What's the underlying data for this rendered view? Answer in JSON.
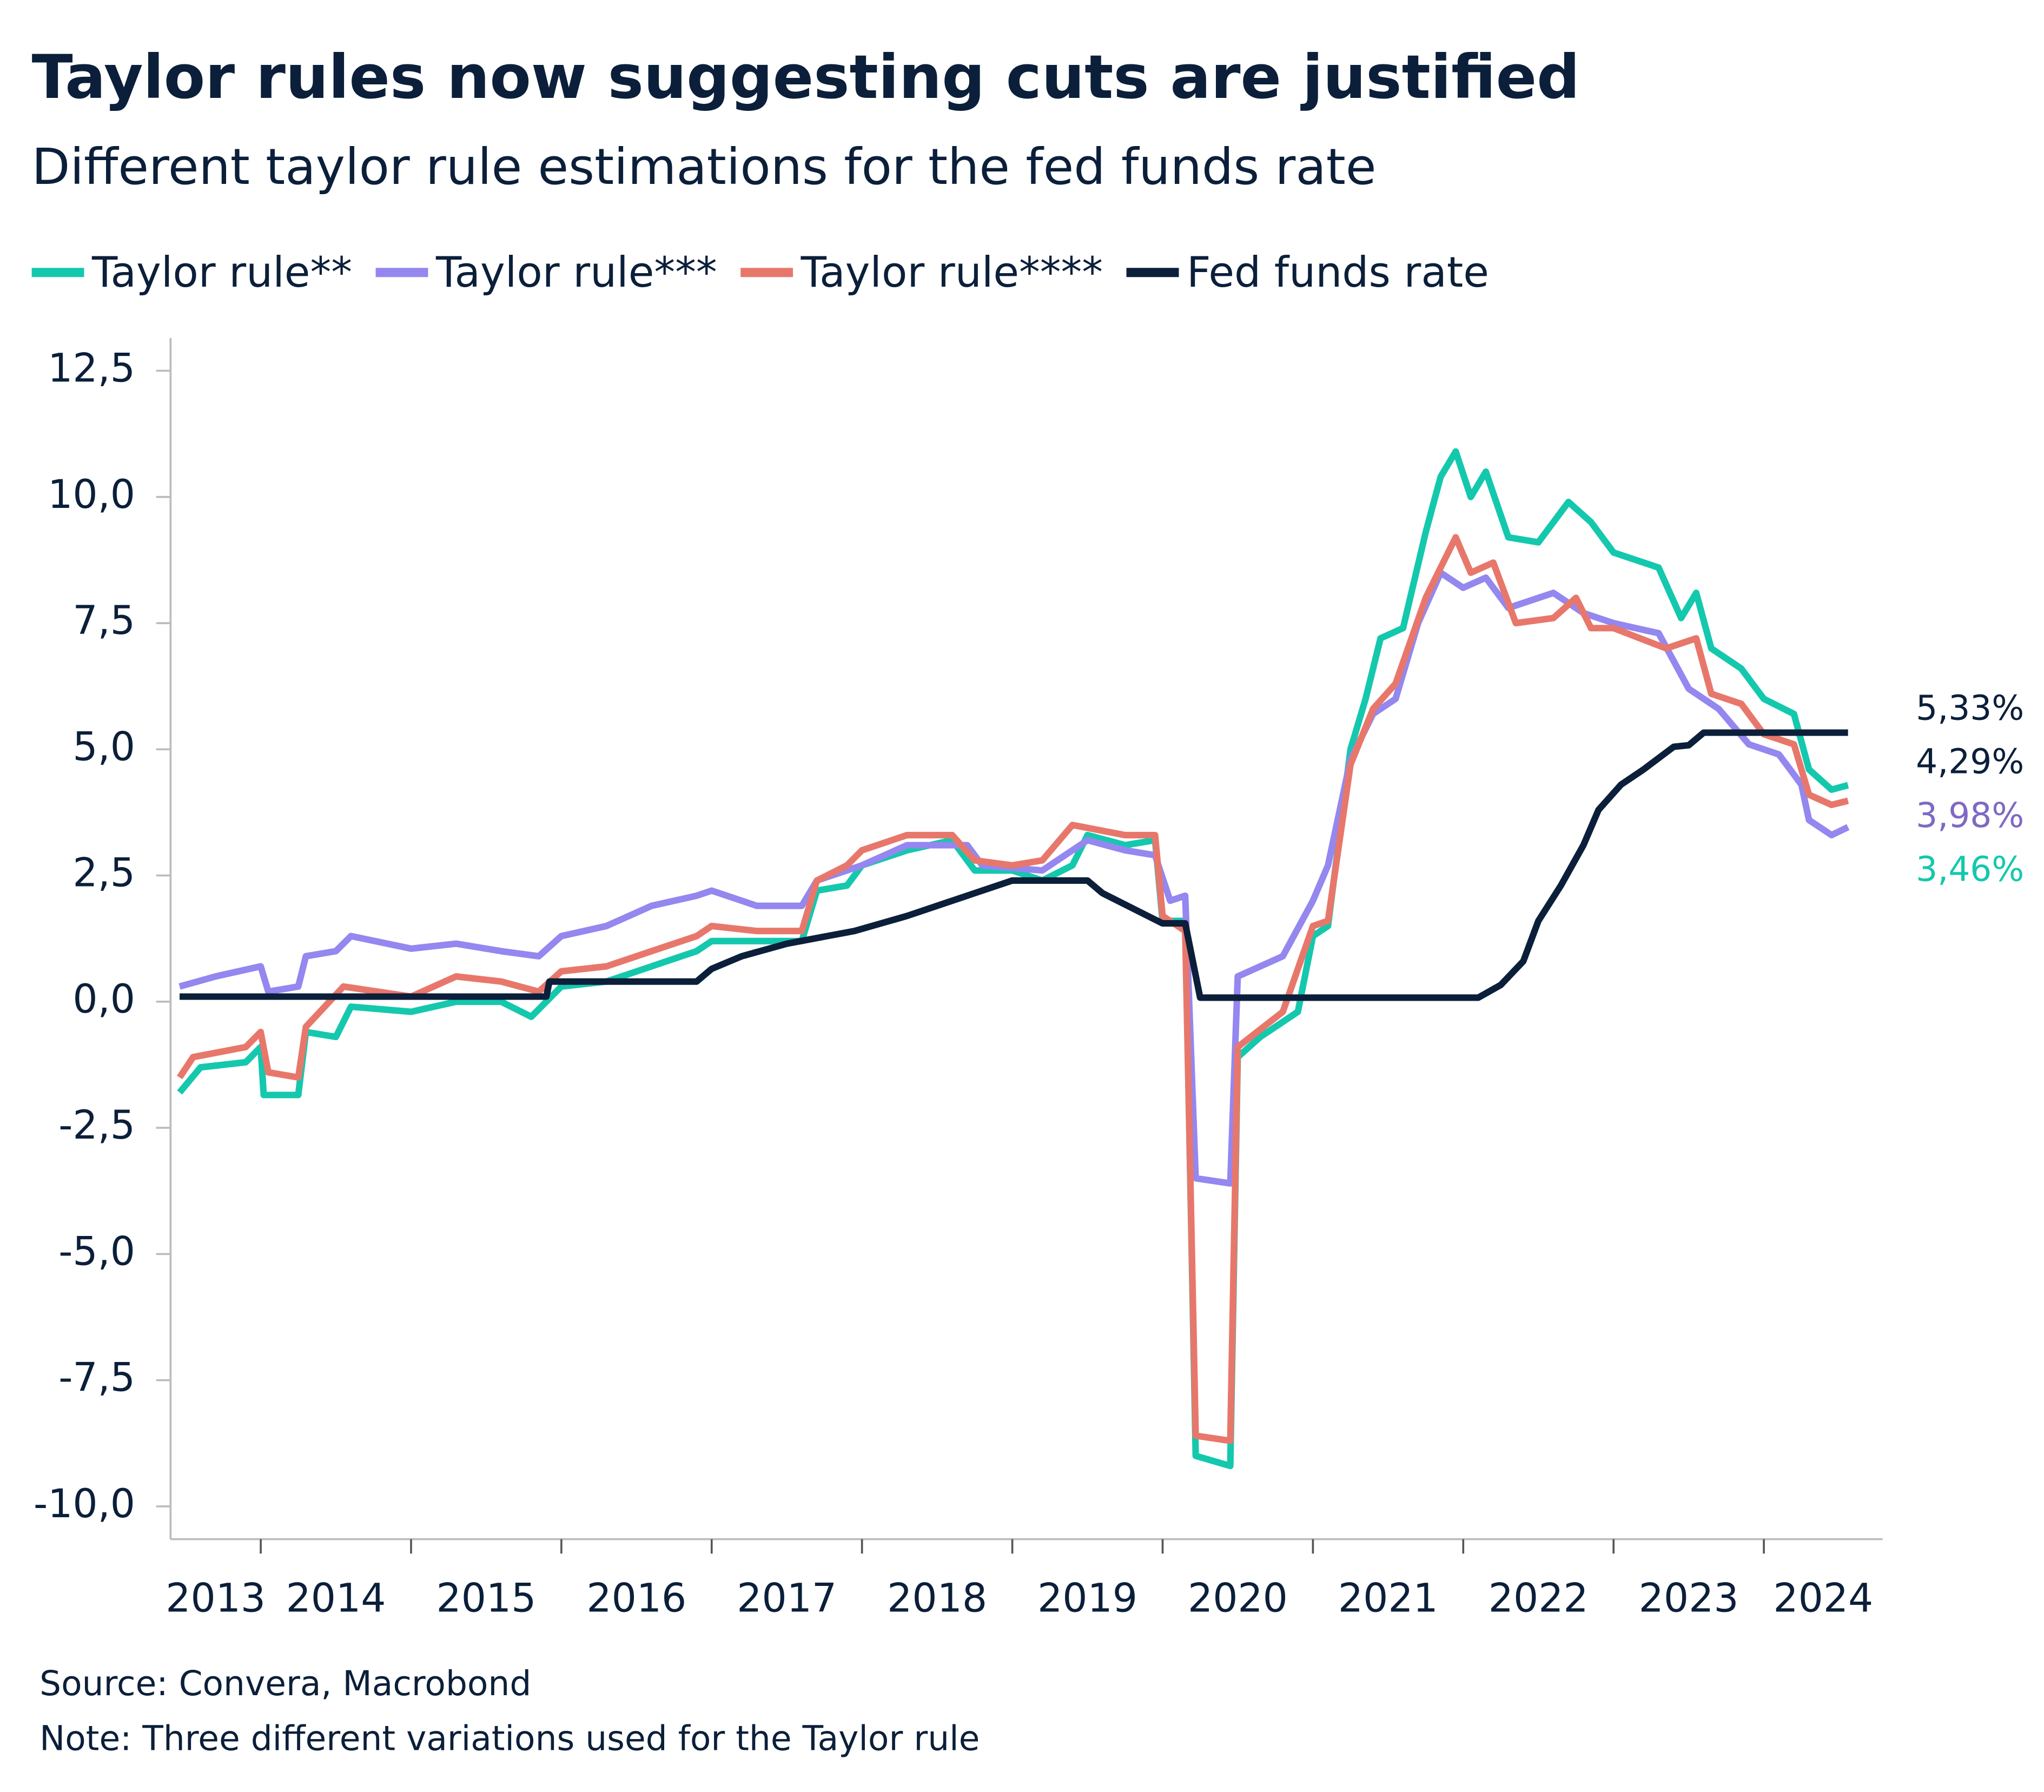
{
  "chart_data": {
    "type": "line",
    "title": "Taylor rules now suggesting cuts are justified",
    "subtitle": "Different taylor rule estimations for the fed funds rate",
    "source": "Source: Convera, Macrobond",
    "note": "Note: Three different variations used for the Taylor rule",
    "xlim": [
      2013.4,
      2024.79
    ],
    "xticks": [
      2013,
      2014,
      2015,
      2016,
      2017,
      2018,
      2019,
      2020,
      2021,
      2022,
      2023,
      2024
    ],
    "ylim": [
      -10.65,
      13.15
    ],
    "yticks": [
      {
        "value": -10,
        "label": "-10,0"
      },
      {
        "value": -7.5,
        "label": "-7,5"
      },
      {
        "value": -5,
        "label": "-5,0"
      },
      {
        "value": -2.5,
        "label": "-2,5"
      },
      {
        "value": 0,
        "label": "0,0"
      },
      {
        "value": 2.5,
        "label": "2,5"
      },
      {
        "value": 5,
        "label": "5,0"
      },
      {
        "value": 7.5,
        "label": "7,5"
      },
      {
        "value": 10,
        "label": "10,0"
      },
      {
        "value": 12.5,
        "label": "12,5"
      }
    ],
    "series": [
      {
        "name": "Taylor rule**",
        "color": "#14c8ad",
        "x": [
          2013.46,
          2013.6,
          2013.9,
          2014.0,
          2014.02,
          2014.25,
          2014.3,
          2014.5,
          2014.6,
          2015.0,
          2015.3,
          2015.6,
          2015.8,
          2016.0,
          2016.3,
          2016.6,
          2016.9,
          2017.0,
          2017.3,
          2017.6,
          2017.7,
          2017.9,
          2018.0,
          2018.3,
          2018.6,
          2018.75,
          2019.0,
          2019.2,
          2019.4,
          2019.5,
          2019.75,
          2019.95,
          2020.0,
          2020.15,
          2020.22,
          2020.45,
          2020.5,
          2020.65,
          2020.9,
          2021.0,
          2021.1,
          2021.25,
          2021.35,
          2021.45,
          2021.6,
          2021.75,
          2021.85,
          2021.95,
          2022.05,
          2022.15,
          2022.3,
          2022.5,
          2022.7,
          2022.85,
          2023.0,
          2023.3,
          2023.45,
          2023.55,
          2023.65,
          2023.85,
          2024.0,
          2024.2,
          2024.3,
          2024.45,
          2024.56
        ],
        "values": [
          -1.8,
          -1.3,
          -1.2,
          -0.9,
          -1.85,
          -1.85,
          -0.6,
          -0.7,
          -0.1,
          -0.2,
          0.0,
          0.0,
          -0.3,
          0.3,
          0.4,
          0.7,
          1.0,
          1.2,
          1.2,
          1.2,
          2.2,
          2.3,
          2.7,
          3.0,
          3.2,
          2.6,
          2.6,
          2.4,
          2.7,
          3.3,
          3.1,
          3.2,
          1.6,
          1.6,
          -9.0,
          -9.2,
          -1.1,
          -0.7,
          -0.2,
          1.3,
          1.5,
          5.0,
          6.0,
          7.2,
          7.4,
          9.3,
          10.4,
          10.9,
          10.0,
          10.5,
          9.2,
          9.1,
          9.9,
          9.5,
          8.9,
          8.6,
          7.6,
          8.1,
          7.0,
          6.6,
          6.0,
          5.7,
          4.6,
          4.2,
          4.29
        ]
      },
      {
        "name": "Taylor rule***",
        "color": "#9487ef",
        "x": [
          2013.46,
          2013.7,
          2014.0,
          2014.05,
          2014.25,
          2014.3,
          2014.5,
          2014.6,
          2015.0,
          2015.3,
          2015.6,
          2015.85,
          2016.0,
          2016.3,
          2016.6,
          2016.9,
          2017.0,
          2017.3,
          2017.6,
          2017.7,
          2018.0,
          2018.3,
          2018.7,
          2018.8,
          2019.2,
          2019.5,
          2019.75,
          2019.95,
          2020.05,
          2020.15,
          2020.22,
          2020.45,
          2020.5,
          2020.8,
          2021.0,
          2021.1,
          2021.25,
          2021.4,
          2021.55,
          2021.7,
          2021.85,
          2022.0,
          2022.15,
          2022.3,
          2022.6,
          2022.8,
          2023.0,
          2023.3,
          2023.5,
          2023.7,
          2023.9,
          2024.1,
          2024.25,
          2024.3,
          2024.45,
          2024.56
        ],
        "values": [
          0.3,
          0.5,
          0.7,
          0.2,
          0.3,
          0.9,
          1.0,
          1.3,
          1.05,
          1.15,
          1.0,
          0.9,
          1.3,
          1.5,
          1.9,
          2.1,
          2.2,
          1.9,
          1.9,
          2.4,
          2.7,
          3.1,
          3.1,
          2.7,
          2.6,
          3.2,
          3.0,
          2.9,
          2.0,
          2.1,
          -3.5,
          -3.6,
          0.5,
          0.9,
          2.0,
          2.7,
          4.8,
          5.7,
          6.0,
          7.5,
          8.5,
          8.2,
          8.4,
          7.8,
          8.1,
          7.7,
          7.5,
          7.3,
          6.2,
          5.8,
          5.1,
          4.9,
          4.3,
          3.6,
          3.3,
          3.46
        ]
      },
      {
        "name": "Taylor rule****",
        "color": "#e8776b",
        "x": [
          2013.46,
          2013.55,
          2013.9,
          2014.0,
          2014.05,
          2014.25,
          2014.3,
          2014.55,
          2015.0,
          2015.3,
          2015.6,
          2015.85,
          2016.0,
          2016.3,
          2016.6,
          2016.9,
          2017.0,
          2017.3,
          2017.6,
          2017.7,
          2017.9,
          2018.0,
          2018.3,
          2018.6,
          2018.75,
          2019.0,
          2019.2,
          2019.4,
          2019.75,
          2019.95,
          2020.0,
          2020.15,
          2020.22,
          2020.45,
          2020.5,
          2020.8,
          2021.0,
          2021.1,
          2021.25,
          2021.4,
          2021.55,
          2021.75,
          2021.85,
          2021.95,
          2022.05,
          2022.2,
          2022.35,
          2022.6,
          2022.75,
          2022.85,
          2023.0,
          2023.35,
          2023.55,
          2023.65,
          2023.85,
          2024.0,
          2024.2,
          2024.3,
          2024.45,
          2024.56
        ],
        "values": [
          -1.5,
          -1.1,
          -0.9,
          -0.6,
          -1.4,
          -1.5,
          -0.5,
          0.3,
          0.1,
          0.5,
          0.4,
          0.2,
          0.6,
          0.7,
          1.0,
          1.3,
          1.5,
          1.4,
          1.4,
          2.4,
          2.7,
          3.0,
          3.3,
          3.3,
          2.8,
          2.7,
          2.8,
          3.5,
          3.3,
          3.3,
          1.7,
          1.4,
          -8.6,
          -8.7,
          -0.9,
          -0.2,
          1.5,
          1.6,
          4.7,
          5.8,
          6.3,
          8.0,
          8.6,
          9.2,
          8.5,
          8.7,
          7.5,
          7.6,
          8.0,
          7.4,
          7.4,
          7.0,
          7.2,
          6.1,
          5.9,
          5.3,
          5.1,
          4.1,
          3.9,
          3.98
        ]
      },
      {
        "name": "Fed funds rate",
        "color": "#0b1f3a",
        "x": [
          2013.46,
          2015.9,
          2015.92,
          2016.9,
          2017.0,
          2017.2,
          2017.5,
          2017.95,
          2018.3,
          2018.5,
          2018.8,
          2019.0,
          2019.5,
          2019.6,
          2019.8,
          2020.0,
          2020.15,
          2020.25,
          2022.1,
          2022.25,
          2022.4,
          2022.5,
          2022.65,
          2022.8,
          2022.9,
          2023.05,
          2023.2,
          2023.4,
          2023.5,
          2023.6,
          2024.56
        ],
        "values": [
          0.1,
          0.1,
          0.4,
          0.4,
          0.65,
          0.9,
          1.15,
          1.4,
          1.7,
          1.9,
          2.2,
          2.4,
          2.4,
          2.15,
          1.85,
          1.55,
          1.55,
          0.08,
          0.08,
          0.33,
          0.8,
          1.6,
          2.3,
          3.1,
          3.8,
          4.3,
          4.6,
          5.05,
          5.08,
          5.33,
          5.33
        ]
      }
    ],
    "annotations": [
      {
        "value": 5.33,
        "label": "5,33%",
        "color": "#0b1f3a"
      },
      {
        "value": 4.29,
        "label": "4,29%",
        "color": "#0b1f3a"
      },
      {
        "value": 3.98,
        "label": "3,98%",
        "color": "#7f68c4"
      },
      {
        "value": 3.46,
        "label": "3,46%",
        "color": "#14c8ad"
      }
    ]
  }
}
